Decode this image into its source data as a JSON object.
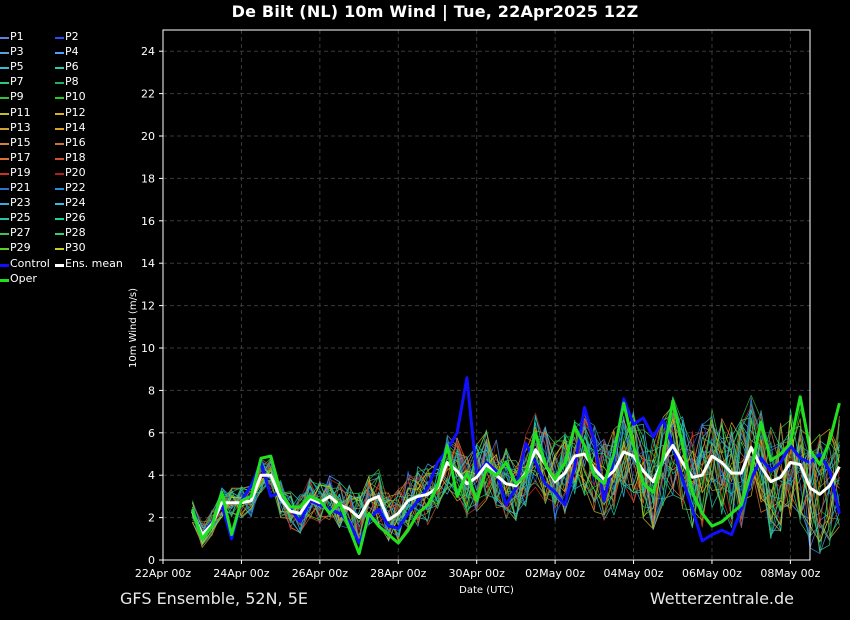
{
  "title": "De Bilt  (NL)  10m Wind | Tue, 22Apr2025 12Z",
  "footer_left": "GFS Ensemble, 52N, 5E",
  "footer_right": "Wetterzentrale.de",
  "chart_data": {
    "type": "line",
    "xlabel": "Date (UTC)",
    "ylabel": "10m Wind (m/s)",
    "ylim": [
      0,
      25
    ],
    "yticks": [
      0,
      2,
      4,
      6,
      8,
      10,
      12,
      14,
      16,
      18,
      20,
      22,
      24
    ],
    "x_range_days": [
      0,
      16.5
    ],
    "x_tick_labels": [
      "22Apr 00z",
      "24Apr 00z",
      "26Apr 00z",
      "28Apr 00z",
      "30Apr 00z",
      "02May 00z",
      "04May 00z",
      "06May 00z",
      "08May 00z"
    ],
    "grid": true,
    "legend_placement": "left outside",
    "time_step_days": 0.25,
    "series": [
      {
        "name": "P1",
        "color": "#6080e0"
      },
      {
        "name": "P2",
        "color": "#2050ff"
      },
      {
        "name": "P3",
        "color": "#5aa0e0"
      },
      {
        "name": "P4",
        "color": "#50a0ff"
      },
      {
        "name": "P5",
        "color": "#30c0d0"
      },
      {
        "name": "P6",
        "color": "#20d0b0"
      },
      {
        "name": "P7",
        "color": "#30c870"
      },
      {
        "name": "P8",
        "color": "#20b060"
      },
      {
        "name": "P9",
        "color": "#30c040"
      },
      {
        "name": "P10",
        "color": "#20d020"
      },
      {
        "name": "P11",
        "color": "#c0c020"
      },
      {
        "name": "P12",
        "color": "#d8b020"
      },
      {
        "name": "P13",
        "color": "#d0a030"
      },
      {
        "name": "P14",
        "color": "#e0a020"
      },
      {
        "name": "P15",
        "color": "#d08040"
      },
      {
        "name": "P16",
        "color": "#c87040"
      },
      {
        "name": "P17",
        "color": "#e07030"
      },
      {
        "name": "P18",
        "color": "#d05030"
      },
      {
        "name": "P19",
        "color": "#d03020"
      },
      {
        "name": "P20",
        "color": "#b02020"
      },
      {
        "name": "P21",
        "color": "#3070d0"
      },
      {
        "name": "P22",
        "color": "#2090e0"
      },
      {
        "name": "P23",
        "color": "#40a8d8"
      },
      {
        "name": "P24",
        "color": "#30c0e0"
      },
      {
        "name": "P25",
        "color": "#20c8a8"
      },
      {
        "name": "P26",
        "color": "#10d8a0"
      },
      {
        "name": "P27",
        "color": "#40c050"
      },
      {
        "name": "P28",
        "color": "#30d070"
      },
      {
        "name": "P29",
        "color": "#60d020"
      },
      {
        "name": "P30",
        "color": "#c8d020"
      },
      {
        "name": "Control",
        "color": "#1010ff",
        "values": [
          2.4,
          1.2,
          1.8,
          2.6,
          1.0,
          2.8,
          3.5,
          4.6,
          3.0,
          3.2,
          2.4,
          1.8,
          2.8,
          2.6,
          2.4,
          2.2,
          1.8,
          0.8,
          1.9,
          2.4,
          1.6,
          1.5,
          2.2,
          2.8,
          3.4,
          4.6,
          5.2,
          6.0,
          8.6,
          4.0,
          4.6,
          4.2,
          2.6,
          3.4,
          5.5,
          4.6,
          3.6,
          3.2,
          2.6,
          4.4,
          7.2,
          5.6,
          2.8,
          4.8,
          7.6,
          6.4,
          6.7,
          5.8,
          6.6,
          5.4,
          3.8,
          2.4,
          0.9,
          1.2,
          1.4,
          1.2,
          2.4,
          3.8,
          4.8,
          4.2,
          4.6,
          5.4,
          4.8,
          4.6,
          5.0,
          4.2,
          2.2
        ]
      },
      {
        "name": "Ens. mean",
        "color": "#ffffff",
        "values": [
          2.3,
          1.2,
          1.7,
          2.7,
          2.7,
          2.7,
          2.8,
          4.0,
          4.0,
          2.9,
          2.3,
          2.2,
          2.9,
          2.7,
          3.0,
          2.6,
          2.4,
          2.0,
          2.8,
          3.0,
          1.9,
          2.2,
          2.8,
          3.0,
          3.1,
          3.4,
          4.6,
          4.2,
          3.6,
          3.9,
          4.5,
          4.0,
          3.6,
          3.5,
          4.1,
          5.2,
          4.5,
          3.7,
          4.1,
          4.9,
          5.0,
          4.3,
          3.8,
          4.2,
          5.1,
          4.9,
          4.2,
          3.7,
          4.7,
          5.4,
          4.6,
          3.9,
          4.0,
          4.9,
          4.6,
          4.1,
          4.1,
          5.3,
          4.4,
          3.7,
          3.9,
          4.6,
          4.5,
          3.4,
          3.1,
          3.5,
          4.4
        ]
      },
      {
        "name": "Oper",
        "color": "#20e020",
        "values": [
          2.4,
          1.0,
          1.6,
          3.2,
          1.2,
          2.8,
          3.0,
          4.8,
          4.9,
          3.2,
          2.5,
          2.5,
          3.0,
          2.8,
          2.2,
          2.7,
          1.5,
          0.3,
          2.2,
          1.6,
          1.2,
          0.8,
          1.4,
          2.2,
          2.6,
          3.5,
          5.4,
          3.0,
          4.1,
          2.8,
          4.3,
          4.0,
          4.6,
          3.6,
          4.0,
          6.0,
          4.5,
          3.8,
          4.6,
          6.3,
          5.4,
          4.0,
          3.6,
          5.0,
          7.4,
          5.4,
          3.6,
          3.2,
          4.8,
          7.5,
          5.4,
          3.2,
          2.2,
          1.6,
          1.8,
          2.2,
          2.6,
          4.2,
          6.5,
          4.7,
          5.0,
          5.5,
          7.7,
          5.2,
          4.5,
          5.6,
          7.4
        ]
      }
    ]
  }
}
